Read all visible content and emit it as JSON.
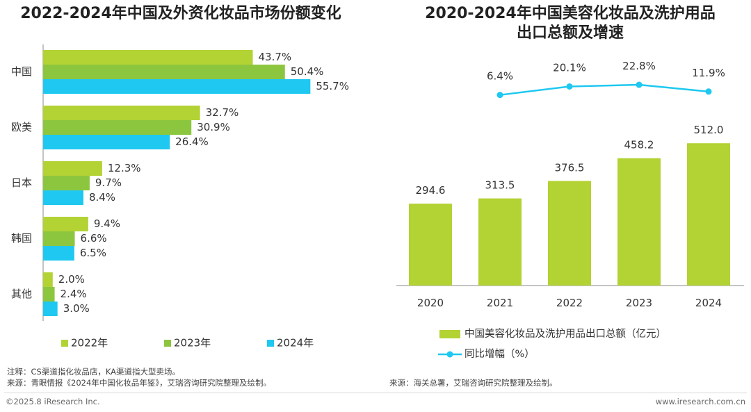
{
  "left_chart": {
    "title": "2022-2024年中国及外资化妆品市场份额变化"
  },
  "right_chart": {
    "title_line1": "2020-2024年中国美容化妆品及洗护用品",
    "title_line2": "出口总额及增速"
  },
  "chart_data": [
    {
      "type": "bar",
      "orientation": "horizontal",
      "title": "2022-2024年中国及外资化妆品市场份额变化",
      "categories": [
        "中国",
        "欧美",
        "日本",
        "韩国",
        "其他"
      ],
      "series": [
        {
          "name": "2022年",
          "values": [
            43.7,
            32.7,
            12.3,
            9.4,
            2.0
          ],
          "labels": [
            "43.7%",
            "32.7%",
            "12.3%",
            "9.4%",
            "2.0%"
          ],
          "color": "#b3d234"
        },
        {
          "name": "2023年",
          "values": [
            50.4,
            30.9,
            9.7,
            6.6,
            2.4
          ],
          "labels": [
            "50.4%",
            "30.9%",
            "9.7%",
            "6.6%",
            "2.4%"
          ],
          "color": "#8cc63f"
        },
        {
          "name": "2024年",
          "values": [
            55.7,
            26.4,
            8.4,
            6.5,
            3.0
          ],
          "labels": [
            "55.7%",
            "26.4%",
            "8.4%",
            "6.5%",
            "3.0%"
          ],
          "color": "#1ec8f0"
        }
      ],
      "unit": "%",
      "legend_position": "bottom"
    },
    {
      "type": "bar+line",
      "title": "2020-2024年中国美容化妆品及洗护用品出口总额及增速",
      "categories": [
        "2020",
        "2021",
        "2022",
        "2023",
        "2024"
      ],
      "series": [
        {
          "name": "中国美容化妆品及洗护用品出口总额（亿元）",
          "type": "bar",
          "values": [
            294.6,
            313.5,
            376.5,
            458.2,
            512.0
          ],
          "labels": [
            "294.6",
            "313.5",
            "376.5",
            "458.2",
            "512.0"
          ],
          "color": "#b3d234"
        },
        {
          "name": "同比增幅（%）",
          "type": "line",
          "values": [
            null,
            6.4,
            20.1,
            22.8,
            11.9
          ],
          "labels": [
            "",
            "6.4%",
            "20.1%",
            "22.8%",
            "11.9%"
          ],
          "color": "#1ec8f0"
        }
      ],
      "legend_position": "bottom"
    }
  ],
  "notes": {
    "left_note": "注释：CS渠道指化妆品店，KA渠道指大型卖场。",
    "left_source": "来源：青眼情报《2024年中国化妆品年鉴》，艾瑞咨询研究院整理及绘制。",
    "right_source": "来源：海关总署，艾瑞咨询研究院整理及绘制。"
  },
  "footer": {
    "copyright": "©2025.8 iResearch Inc.",
    "website": "www.iresearch.com.cn"
  }
}
